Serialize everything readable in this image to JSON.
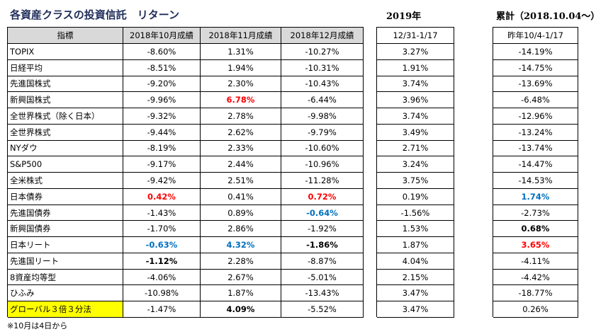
{
  "title": "各資産クラスの投資信託　リターン",
  "footnote": "※10月は4日から",
  "main": {
    "header": [
      "指標",
      "2018年10月成績",
      "2018年11月成績",
      "2018年12月成績"
    ],
    "rows": [
      [
        "TOPIX",
        "-8.60%",
        "1.31%",
        "-10.27%"
      ],
      [
        "日経平均",
        "-8.51%",
        "1.94%",
        "-10.31%"
      ],
      [
        "先進国株式",
        "-9.20%",
        "2.30%",
        "-10.43%"
      ],
      [
        "新興国株式",
        "-9.96%",
        {
          "text": "6.78%",
          "color": "#ff0000",
          "bold": true
        },
        "-6.44%"
      ],
      [
        "全世界株式（除く日本）",
        "-9.32%",
        "2.78%",
        "-9.98%"
      ],
      [
        "全世界株式",
        "-9.44%",
        "2.62%",
        "-9.79%"
      ],
      [
        "NYダウ",
        "-8.19%",
        "2.33%",
        "-10.60%"
      ],
      [
        "S&P500",
        "-9.17%",
        "2.44%",
        "-10.96%"
      ],
      [
        "全米株式",
        "-9.42%",
        "2.51%",
        "-11.28%"
      ],
      [
        "日本債券",
        {
          "text": "0.42%",
          "color": "#ff0000",
          "bold": true
        },
        "0.41%",
        {
          "text": "0.72%",
          "color": "#ff0000",
          "bold": true
        }
      ],
      [
        "先進国債券",
        "-1.43%",
        "0.89%",
        {
          "text": "-0.64%",
          "color": "#0070c0",
          "bold": true
        }
      ],
      [
        "新興国債券",
        "-1.70%",
        "2.86%",
        "-1.92%"
      ],
      [
        "日本リート",
        {
          "text": "-0.63%",
          "color": "#0070c0",
          "bold": true
        },
        {
          "text": "4.32%",
          "color": "#0070c0",
          "bold": true
        },
        {
          "text": "-1.86%",
          "color": "#000000",
          "bold": true
        }
      ],
      [
        "先進国リート",
        {
          "text": "-1.12%",
          "color": "#000000",
          "bold": true
        },
        "2.28%",
        "-8.87%"
      ],
      [
        "8資産均等型",
        "-4.06%",
        "2.67%",
        "-5.01%"
      ],
      [
        "ひふみ",
        "-10.98%",
        "1.87%",
        "-13.43%"
      ],
      [
        {
          "text": "グローバル３倍３分法",
          "background": "#ffff00"
        },
        "-1.47%",
        {
          "text": "4.09%",
          "color": "#000000",
          "bold": true
        },
        "-5.52%"
      ]
    ]
  },
  "year2019": {
    "title": "2019年",
    "header": "12/31-1/17",
    "rows": [
      "3.27%",
      "1.91%",
      "3.74%",
      "3.96%",
      "3.74%",
      "3.49%",
      "2.71%",
      "3.24%",
      "3.75%",
      "0.19%",
      "-1.56%",
      "1.53%",
      "1.87%",
      "4.04%",
      "2.15%",
      "3.47%",
      "3.47%"
    ]
  },
  "cumulative": {
    "title": "累計（2018.10.04～）",
    "header": "昨年10/4-1/17",
    "rows": [
      "-14.19%",
      "-14.75%",
      "-13.69%",
      "-6.48%",
      "-12.96%",
      "-13.24%",
      "-13.74%",
      "-14.47%",
      "-14.53%",
      {
        "text": "1.74%",
        "color": "#0070c0",
        "bold": true
      },
      "-2.73%",
      {
        "text": "0.68%",
        "color": "#000000",
        "bold": true
      },
      {
        "text": "3.65%",
        "color": "#ff0000",
        "bold": true
      },
      "-4.11%",
      "-4.42%",
      "-18.77%",
      "0.26%"
    ]
  }
}
